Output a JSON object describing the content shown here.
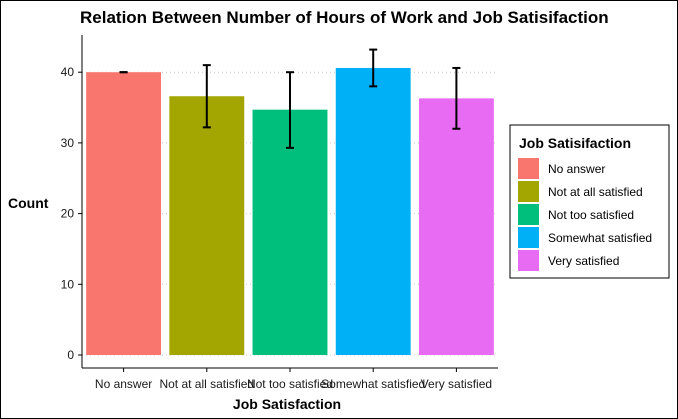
{
  "chart_data": {
    "type": "bar",
    "title": "Relation Between Number of Hours of Work and Job Satisifaction",
    "xlabel": "Job Satisfaction",
    "ylabel": "Count",
    "categories": [
      "No answer",
      "Not at all satisfied",
      "Not too satisfied",
      "Somewhat satisfied",
      "Very satisfied"
    ],
    "values": [
      40.0,
      36.6,
      34.7,
      40.6,
      36.3
    ],
    "error_low": [
      40.0,
      32.2,
      29.3,
      38.0,
      32.0
    ],
    "error_high": [
      40.0,
      41.0,
      40.0,
      43.2,
      40.6
    ],
    "colors": [
      "#F8766D",
      "#A3A500",
      "#00BF7D",
      "#00B0F6",
      "#E76BF3"
    ],
    "ylim": [
      0,
      45
    ],
    "yticks": [
      0,
      10,
      20,
      30,
      40
    ],
    "grid": true,
    "legend": {
      "title": "Job Satisifaction",
      "placement": "right",
      "entries": [
        "No answer",
        "Not at all satisfied",
        "Not too satisfied",
        "Somewhat satisfied",
        "Very satisfied"
      ]
    }
  }
}
